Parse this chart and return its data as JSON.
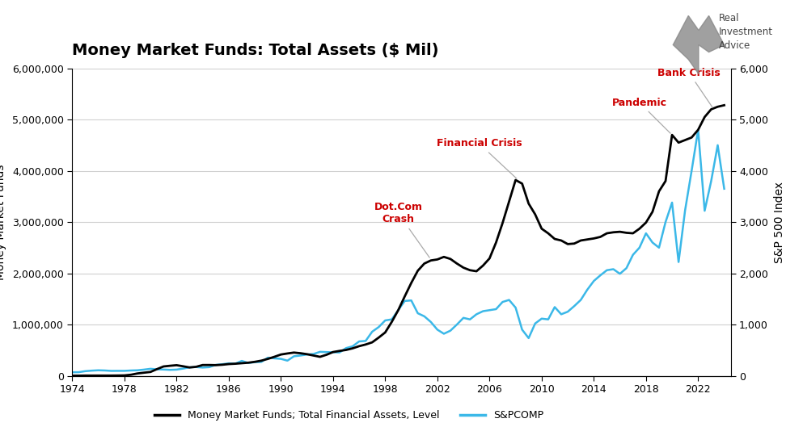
{
  "title": "Money Market Funds: Total Assets ($ Mil)",
  "ylabel_left": "Money Market Funds",
  "ylabel_right": "S&P 500 Index",
  "legend_mmf": "Money Market Funds; Total Financial Assets, Level",
  "legend_sp": "S&PCOMP",
  "mmf_color": "#000000",
  "sp_color": "#3BB8E8",
  "background_color": "#ffffff",
  "grid_color": "#d0d0d0",
  "annotation_color": "#cc0000",
  "xlim": [
    1974,
    2024.5
  ],
  "ylim_left": [
    0,
    6000000
  ],
  "ylim_right": [
    0,
    6000
  ],
  "xticks": [
    1974,
    1978,
    1982,
    1986,
    1990,
    1994,
    1998,
    2002,
    2006,
    2010,
    2014,
    2018,
    2022
  ],
  "yticks_left": [
    0,
    1000000,
    2000000,
    3000000,
    4000000,
    5000000,
    6000000
  ],
  "yticks_right": [
    0,
    1000,
    2000,
    3000,
    4000,
    5000,
    6000
  ],
  "mmf_data": [
    [
      1974.0,
      1600
    ],
    [
      1974.5,
      2000
    ],
    [
      1975.0,
      3700
    ],
    [
      1975.5,
      3500
    ],
    [
      1976.0,
      3700
    ],
    [
      1976.5,
      3600
    ],
    [
      1977.0,
      3800
    ],
    [
      1977.5,
      5000
    ],
    [
      1978.0,
      7200
    ],
    [
      1978.5,
      20000
    ],
    [
      1979.0,
      45000
    ],
    [
      1979.5,
      60000
    ],
    [
      1980.0,
      74400
    ],
    [
      1980.5,
      130000
    ],
    [
      1981.0,
      181600
    ],
    [
      1981.5,
      195000
    ],
    [
      1982.0,
      206600
    ],
    [
      1982.5,
      185000
    ],
    [
      1983.0,
      161900
    ],
    [
      1983.5,
      175000
    ],
    [
      1984.0,
      209600
    ],
    [
      1984.5,
      210000
    ],
    [
      1985.0,
      207500
    ],
    [
      1985.5,
      215000
    ],
    [
      1986.0,
      228200
    ],
    [
      1986.5,
      235000
    ],
    [
      1987.0,
      245100
    ],
    [
      1987.5,
      255000
    ],
    [
      1988.0,
      272200
    ],
    [
      1988.5,
      295000
    ],
    [
      1989.0,
      329200
    ],
    [
      1989.5,
      370000
    ],
    [
      1990.0,
      414700
    ],
    [
      1990.5,
      435000
    ],
    [
      1991.0,
      452600
    ],
    [
      1991.5,
      440000
    ],
    [
      1992.0,
      420900
    ],
    [
      1992.5,
      395000
    ],
    [
      1993.0,
      369300
    ],
    [
      1993.5,
      410000
    ],
    [
      1994.0,
      463100
    ],
    [
      1994.5,
      485000
    ],
    [
      1995.0,
      503900
    ],
    [
      1995.5,
      535000
    ],
    [
      1996.0,
      577500
    ],
    [
      1996.5,
      610000
    ],
    [
      1997.0,
      652100
    ],
    [
      1997.5,
      745000
    ],
    [
      1998.0,
      845400
    ],
    [
      1998.5,
      1050000
    ],
    [
      1999.0,
      1280000
    ],
    [
      1999.5,
      1550000
    ],
    [
      2000.0,
      1812000
    ],
    [
      2000.5,
      2050000
    ],
    [
      2001.0,
      2190000
    ],
    [
      2001.5,
      2250000
    ],
    [
      2002.0,
      2270000
    ],
    [
      2002.5,
      2320000
    ],
    [
      2003.0,
      2280000
    ],
    [
      2003.5,
      2190000
    ],
    [
      2004.0,
      2110000
    ],
    [
      2004.5,
      2060000
    ],
    [
      2005.0,
      2040000
    ],
    [
      2005.5,
      2150000
    ],
    [
      2006.0,
      2290000
    ],
    [
      2006.5,
      2600000
    ],
    [
      2007.0,
      2980000
    ],
    [
      2007.5,
      3400000
    ],
    [
      2008.0,
      3820000
    ],
    [
      2008.5,
      3750000
    ],
    [
      2009.0,
      3360000
    ],
    [
      2009.5,
      3150000
    ],
    [
      2010.0,
      2870000
    ],
    [
      2010.5,
      2780000
    ],
    [
      2011.0,
      2670000
    ],
    [
      2011.5,
      2640000
    ],
    [
      2012.0,
      2570000
    ],
    [
      2012.5,
      2580000
    ],
    [
      2013.0,
      2640000
    ],
    [
      2013.5,
      2660000
    ],
    [
      2014.0,
      2680000
    ],
    [
      2014.5,
      2710000
    ],
    [
      2015.0,
      2780000
    ],
    [
      2015.5,
      2800000
    ],
    [
      2016.0,
      2810000
    ],
    [
      2016.5,
      2790000
    ],
    [
      2017.0,
      2780000
    ],
    [
      2017.5,
      2870000
    ],
    [
      2018.0,
      2990000
    ],
    [
      2018.5,
      3200000
    ],
    [
      2019.0,
      3600000
    ],
    [
      2019.5,
      3800000
    ],
    [
      2020.0,
      4700000
    ],
    [
      2020.5,
      4550000
    ],
    [
      2021.0,
      4600000
    ],
    [
      2021.5,
      4650000
    ],
    [
      2022.0,
      4800000
    ],
    [
      2022.5,
      5050000
    ],
    [
      2023.0,
      5200000
    ],
    [
      2023.5,
      5250000
    ],
    [
      2024.0,
      5280000
    ]
  ],
  "sp_data": [
    [
      1974.0,
      68
    ],
    [
      1974.5,
      70
    ],
    [
      1975.0,
      90
    ],
    [
      1975.5,
      100
    ],
    [
      1976.0,
      107
    ],
    [
      1976.5,
      103
    ],
    [
      1977.0,
      95
    ],
    [
      1977.5,
      96
    ],
    [
      1978.0,
      96
    ],
    [
      1978.5,
      103
    ],
    [
      1979.0,
      107
    ],
    [
      1979.5,
      120
    ],
    [
      1980.0,
      136
    ],
    [
      1980.5,
      125
    ],
    [
      1981.0,
      122
    ],
    [
      1981.5,
      115
    ],
    [
      1982.0,
      120
    ],
    [
      1982.5,
      140
    ],
    [
      1983.0,
      165
    ],
    [
      1983.5,
      170
    ],
    [
      1984.0,
      160
    ],
    [
      1984.5,
      168
    ],
    [
      1985.0,
      212
    ],
    [
      1985.5,
      225
    ],
    [
      1986.0,
      242
    ],
    [
      1986.5,
      236
    ],
    [
      1987.0,
      290
    ],
    [
      1987.5,
      250
    ],
    [
      1988.0,
      265
    ],
    [
      1988.5,
      270
    ],
    [
      1989.0,
      353
    ],
    [
      1989.5,
      340
    ],
    [
      1990.0,
      330
    ],
    [
      1990.5,
      295
    ],
    [
      1991.0,
      380
    ],
    [
      1991.5,
      395
    ],
    [
      1992.0,
      415
    ],
    [
      1992.5,
      425
    ],
    [
      1993.0,
      467
    ],
    [
      1993.5,
      462
    ],
    [
      1994.0,
      459
    ],
    [
      1994.5,
      455
    ],
    [
      1995.0,
      540
    ],
    [
      1995.5,
      575
    ],
    [
      1996.0,
      670
    ],
    [
      1996.5,
      680
    ],
    [
      1997.0,
      860
    ],
    [
      1997.5,
      950
    ],
    [
      1998.0,
      1080
    ],
    [
      1998.5,
      1100
    ],
    [
      1999.0,
      1280
    ],
    [
      1999.5,
      1460
    ],
    [
      2000.0,
      1470
    ],
    [
      2000.5,
      1220
    ],
    [
      2001.0,
      1160
    ],
    [
      2001.5,
      1050
    ],
    [
      2002.0,
      900
    ],
    [
      2002.5,
      820
    ],
    [
      2003.0,
      880
    ],
    [
      2003.5,
      1000
    ],
    [
      2004.0,
      1130
    ],
    [
      2004.5,
      1100
    ],
    [
      2005.0,
      1200
    ],
    [
      2005.5,
      1260
    ],
    [
      2006.0,
      1280
    ],
    [
      2006.5,
      1300
    ],
    [
      2007.0,
      1440
    ],
    [
      2007.5,
      1480
    ],
    [
      2008.0,
      1330
    ],
    [
      2008.5,
      900
    ],
    [
      2009.0,
      735
    ],
    [
      2009.5,
      1020
    ],
    [
      2010.0,
      1115
    ],
    [
      2010.5,
      1100
    ],
    [
      2011.0,
      1340
    ],
    [
      2011.5,
      1200
    ],
    [
      2012.0,
      1250
    ],
    [
      2012.5,
      1360
    ],
    [
      2013.0,
      1480
    ],
    [
      2013.5,
      1680
    ],
    [
      2014.0,
      1850
    ],
    [
      2014.5,
      1960
    ],
    [
      2015.0,
      2060
    ],
    [
      2015.5,
      2080
    ],
    [
      2016.0,
      1990
    ],
    [
      2016.5,
      2100
    ],
    [
      2017.0,
      2360
    ],
    [
      2017.5,
      2500
    ],
    [
      2018.0,
      2780
    ],
    [
      2018.5,
      2600
    ],
    [
      2019.0,
      2500
    ],
    [
      2019.5,
      3000
    ],
    [
      2020.0,
      3380
    ],
    [
      2020.5,
      2220
    ],
    [
      2021.0,
      3230
    ],
    [
      2021.5,
      4000
    ],
    [
      2022.0,
      4800
    ],
    [
      2022.5,
      3220
    ],
    [
      2023.0,
      3800
    ],
    [
      2023.5,
      4500
    ],
    [
      2024.0,
      3650
    ]
  ]
}
